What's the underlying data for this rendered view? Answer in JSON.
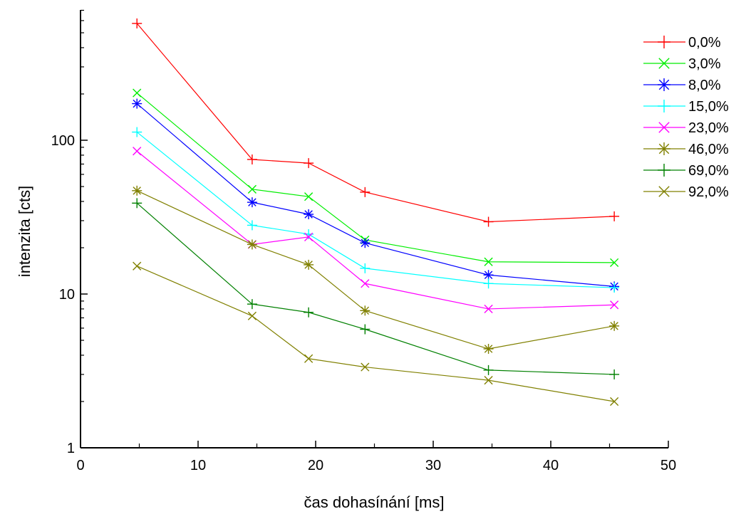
{
  "chart_data": {
    "type": "line",
    "title": "",
    "xlabel": "čas dohasínání [ms]",
    "ylabel": "intenzita [cts]",
    "xlim": [
      0,
      50
    ],
    "ylim": [
      1,
      900
    ],
    "yscale": "log",
    "grid": false,
    "legend_position": "top-right",
    "x_ticks": [
      0,
      10,
      20,
      30,
      40,
      50
    ],
    "x_tick_labels": [
      "0",
      "10",
      "20",
      "30",
      "40",
      "50"
    ],
    "y_ticks": [
      1,
      10,
      100
    ],
    "y_tick_labels": [
      "1",
      "10",
      "100"
    ],
    "x": [
      4.8,
      14.6,
      19.4,
      24.2,
      34.7,
      45.4
    ],
    "series": [
      {
        "name": "0,0%",
        "color": "#ff0000",
        "marker": "plus",
        "values": [
          575,
          75,
          71,
          46,
          29.5,
          32
        ]
      },
      {
        "name": "3,0%",
        "color": "#00ee00",
        "marker": "x",
        "values": [
          203,
          48,
          43,
          22.5,
          16.2,
          16
        ]
      },
      {
        "name": "8,0%",
        "color": "#0000ff",
        "marker": "asterisk",
        "values": [
          173,
          39.5,
          33,
          21.5,
          13.3,
          11.2
        ]
      },
      {
        "name": "15,0%",
        "color": "#00ffff",
        "marker": "plus",
        "values": [
          113,
          28,
          24.5,
          14.7,
          11.7,
          11
        ]
      },
      {
        "name": "23,0%",
        "color": "#ff00ff",
        "marker": "x",
        "values": [
          85,
          21,
          23.5,
          11.7,
          8,
          8.5
        ]
      },
      {
        "name": "46,0%",
        "color": "#808000",
        "marker": "asterisk",
        "values": [
          47,
          21,
          15.5,
          7.8,
          4.4,
          6.2
        ]
      },
      {
        "name": "69,0%",
        "color": "#008000",
        "marker": "plus",
        "values": [
          39,
          8.6,
          7.6,
          5.9,
          3.2,
          3
        ]
      },
      {
        "name": "92,0%",
        "color": "#808000",
        "marker": "x",
        "values": [
          15.2,
          7.2,
          3.8,
          3.35,
          2.75,
          2
        ]
      }
    ]
  }
}
